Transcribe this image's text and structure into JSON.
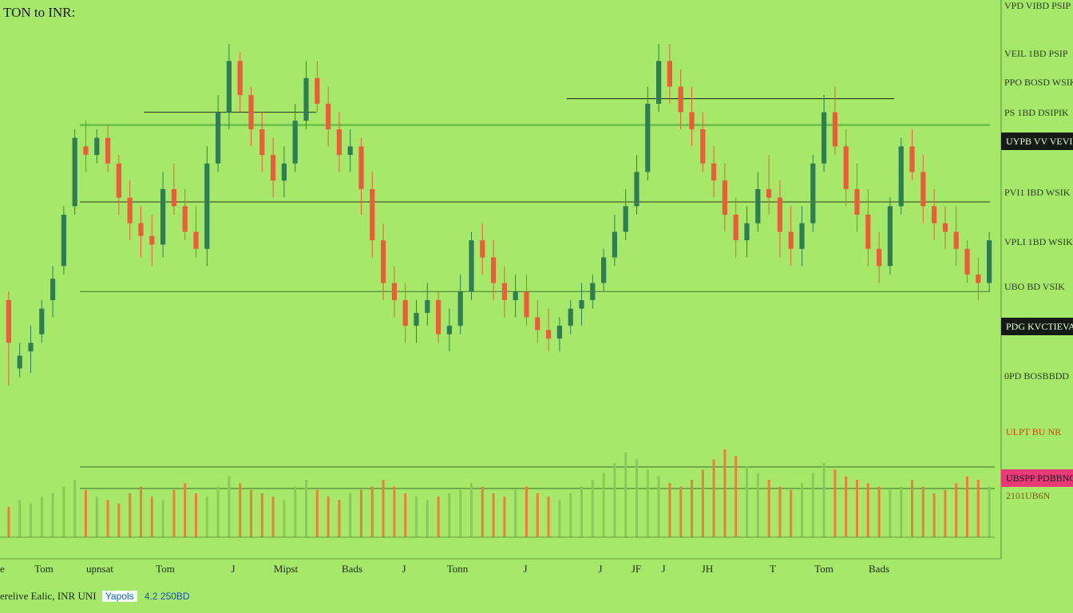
{
  "title": "TON to INR:",
  "colors": {
    "background": "#a6e96a",
    "up": "#2f7d55",
    "down": "#ef5a38",
    "volume_up": "#88c95a",
    "volume_down": "#f07c3a",
    "line": "#1a1a1a"
  },
  "price_labels": [
    "VPD VIBD PSIP",
    "VEIL 1BD PSIP",
    "PPO BOSD WSIK",
    "PS 1BD DSIPIK",
    "PVI1 IBD WSIK",
    "VPLI 1BD WSIK",
    "UBO BD VSIK",
    "0PD BOSBBDD"
  ],
  "price_tags": {
    "upper": "UYPB VV VEVIIIIB",
    "lower": "PDG KVCTIEVAIE",
    "pink": "UBSPP PDBBNCK",
    "orange": "ULPT BU NR",
    "below_pink": "2101UB6N"
  },
  "x_ticks": [
    "e",
    "Tom",
    "upnsat",
    "Tom",
    "J",
    "Mipst",
    "Bads",
    "J",
    "Tonn",
    "J",
    "J",
    "JF",
    "J",
    "JH",
    "T",
    "Tom",
    "Bads"
  ],
  "footer": {
    "left": "erelive Ealic, INR UNI",
    "badge": "Yapols",
    "value": "4.2 250BD"
  },
  "chart_data": {
    "type": "candlestick",
    "title": "TON to INR:",
    "xlabel": "",
    "ylabel": "",
    "ylim": [
      0,
      100
    ],
    "grid": false,
    "legend": "none",
    "horizontal_levels": [
      81,
      63,
      42,
      84
    ],
    "candles": [
      [
        40,
        42,
        20,
        30
      ],
      [
        24,
        30,
        22,
        27
      ],
      [
        28,
        34,
        23,
        30
      ],
      [
        32,
        40,
        30,
        38
      ],
      [
        40,
        48,
        36,
        45
      ],
      [
        48,
        62,
        46,
        60
      ],
      [
        62,
        80,
        60,
        78
      ],
      [
        76,
        82,
        70,
        74
      ],
      [
        74,
        80,
        72,
        78
      ],
      [
        78,
        81,
        70,
        72
      ],
      [
        72,
        74,
        60,
        64
      ],
      [
        64,
        68,
        54,
        58
      ],
      [
        58,
        62,
        50,
        55
      ],
      [
        55,
        60,
        48,
        53
      ],
      [
        53,
        70,
        50,
        66
      ],
      [
        66,
        72,
        60,
        62
      ],
      [
        62,
        66,
        54,
        56
      ],
      [
        56,
        62,
        50,
        52
      ],
      [
        52,
        76,
        48,
        72
      ],
      [
        72,
        88,
        70,
        84
      ],
      [
        84,
        100,
        80,
        96
      ],
      [
        96,
        98,
        84,
        88
      ],
      [
        88,
        90,
        76,
        80
      ],
      [
        80,
        84,
        70,
        74
      ],
      [
        74,
        78,
        64,
        68
      ],
      [
        68,
        76,
        64,
        72
      ],
      [
        72,
        86,
        70,
        82
      ],
      [
        82,
        96,
        80,
        92
      ],
      [
        92,
        96,
        84,
        86
      ],
      [
        86,
        90,
        76,
        80
      ],
      [
        80,
        84,
        70,
        74
      ],
      [
        74,
        80,
        70,
        76
      ],
      [
        76,
        78,
        60,
        66
      ],
      [
        66,
        70,
        50,
        54
      ],
      [
        54,
        58,
        40,
        44
      ],
      [
        44,
        48,
        36,
        40
      ],
      [
        40,
        44,
        30,
        34
      ],
      [
        34,
        40,
        30,
        37
      ],
      [
        37,
        44,
        34,
        40
      ],
      [
        40,
        42,
        30,
        32
      ],
      [
        32,
        38,
        28,
        34
      ],
      [
        34,
        46,
        32,
        42
      ],
      [
        42,
        56,
        40,
        54
      ],
      [
        54,
        58,
        46,
        50
      ],
      [
        50,
        54,
        40,
        44
      ],
      [
        44,
        48,
        36,
        40
      ],
      [
        40,
        46,
        36,
        42
      ],
      [
        42,
        46,
        34,
        36
      ],
      [
        36,
        40,
        30,
        33
      ],
      [
        33,
        38,
        28,
        31
      ],
      [
        31,
        36,
        28,
        34
      ],
      [
        34,
        40,
        32,
        38
      ],
      [
        38,
        44,
        34,
        40
      ],
      [
        40,
        46,
        38,
        44
      ],
      [
        44,
        52,
        42,
        50
      ],
      [
        50,
        60,
        48,
        56
      ],
      [
        56,
        66,
        54,
        62
      ],
      [
        62,
        74,
        60,
        70
      ],
      [
        70,
        90,
        68,
        86
      ],
      [
        86,
        100,
        84,
        96
      ],
      [
        96,
        100,
        86,
        90
      ],
      [
        90,
        94,
        80,
        84
      ],
      [
        84,
        90,
        76,
        80
      ],
      [
        80,
        84,
        70,
        72
      ],
      [
        72,
        76,
        64,
        68
      ],
      [
        68,
        72,
        56,
        60
      ],
      [
        60,
        64,
        50,
        54
      ],
      [
        54,
        62,
        50,
        58
      ],
      [
        58,
        70,
        56,
        66
      ],
      [
        66,
        74,
        60,
        64
      ],
      [
        64,
        68,
        50,
        56
      ],
      [
        56,
        62,
        48,
        52
      ],
      [
        52,
        62,
        48,
        58
      ],
      [
        58,
        74,
        56,
        72
      ],
      [
        72,
        88,
        70,
        84
      ],
      [
        84,
        90,
        74,
        76
      ],
      [
        76,
        80,
        62,
        66
      ],
      [
        66,
        72,
        56,
        60
      ],
      [
        60,
        66,
        48,
        52
      ],
      [
        52,
        56,
        44,
        48
      ],
      [
        48,
        64,
        46,
        62
      ],
      [
        62,
        78,
        60,
        76
      ],
      [
        76,
        80,
        68,
        70
      ],
      [
        70,
        74,
        58,
        62
      ],
      [
        62,
        66,
        54,
        58
      ],
      [
        58,
        62,
        52,
        56
      ],
      [
        56,
        62,
        48,
        52
      ],
      [
        52,
        54,
        44,
        46
      ],
      [
        46,
        50,
        40,
        44
      ],
      [
        44,
        56,
        42,
        54
      ]
    ],
    "volume": [
      18,
      22,
      20,
      24,
      26,
      30,
      34,
      28,
      24,
      22,
      20,
      26,
      30,
      24,
      22,
      28,
      32,
      26,
      24,
      30,
      36,
      32,
      28,
      26,
      24,
      22,
      30,
      34,
      28,
      24,
      22,
      26,
      28,
      30,
      34,
      30,
      26,
      24,
      22,
      24,
      26,
      28,
      32,
      30,
      26,
      24,
      28,
      30,
      26,
      24,
      22,
      26,
      30,
      34,
      38,
      44,
      50,
      46,
      40,
      36,
      32,
      30,
      34,
      40,
      46,
      52,
      48,
      42,
      38,
      34,
      30,
      28,
      32,
      38,
      44,
      40,
      36,
      34,
      32,
      30,
      28,
      30,
      34,
      30,
      26,
      28,
      32,
      36,
      34,
      30
    ]
  }
}
